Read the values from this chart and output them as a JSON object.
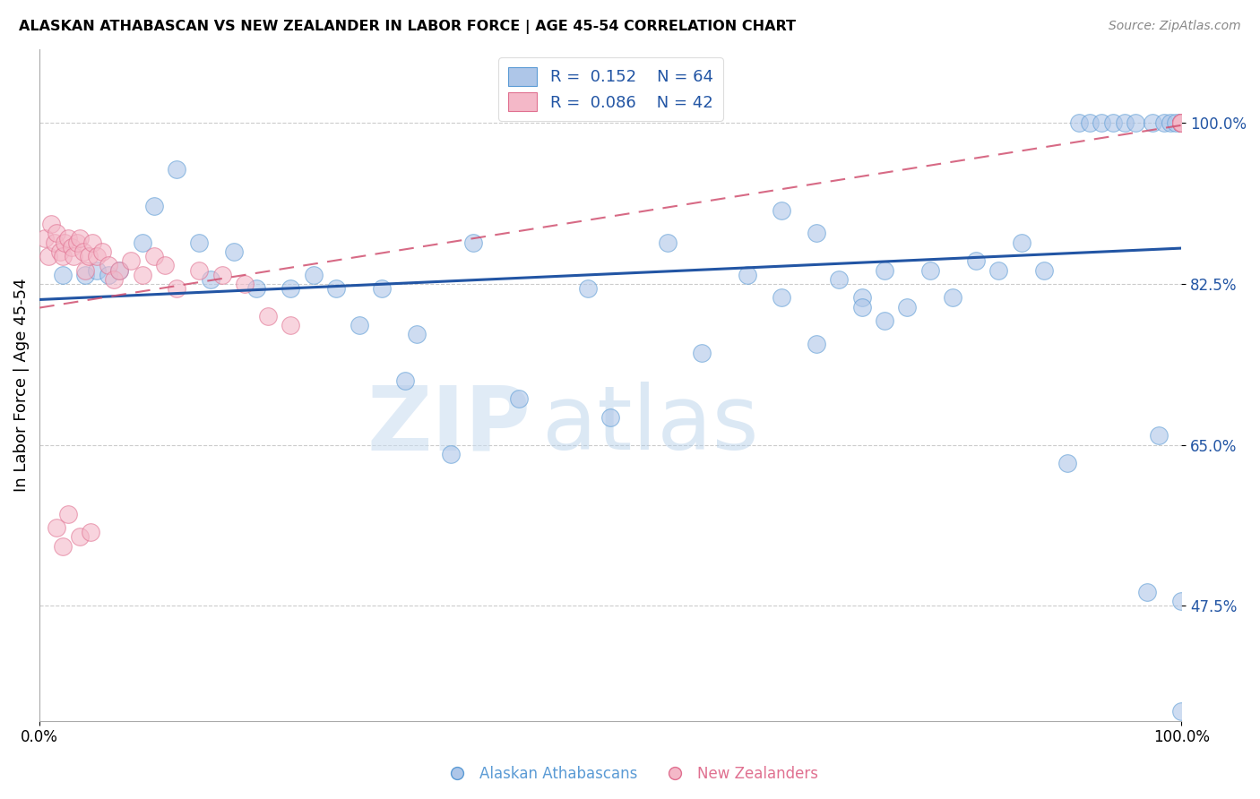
{
  "title": "ALASKAN ATHABASCAN VS NEW ZEALANDER IN LABOR FORCE | AGE 45-54 CORRELATION CHART",
  "source": "Source: ZipAtlas.com",
  "ylabel": "In Labor Force | Age 45-54",
  "ytick_labels": [
    "47.5%",
    "65.0%",
    "82.5%",
    "100.0%"
  ],
  "ytick_values": [
    0.475,
    0.65,
    0.825,
    1.0
  ],
  "xlim": [
    0.0,
    1.0
  ],
  "ylim": [
    0.35,
    1.08
  ],
  "legend_r1": "R =  0.152",
  "legend_n1": "N = 64",
  "legend_r2": "R =  0.086",
  "legend_n2": "N = 42",
  "blue_scatter_color": "#aec6e8",
  "pink_scatter_color": "#f4b8c8",
  "blue_edge_color": "#5b9bd5",
  "pink_edge_color": "#e07090",
  "blue_line_color": "#2255a4",
  "pink_line_color": "#d05070",
  "legend_text_color": "#2255a4",
  "blue_scatter_x": [
    0.02,
    0.04,
    0.05,
    0.06,
    0.07,
    0.09,
    0.1,
    0.12,
    0.14,
    0.15,
    0.17,
    0.19,
    0.22,
    0.24,
    0.26,
    0.28,
    0.3,
    0.33,
    0.38,
    0.42,
    0.48,
    0.5,
    0.55,
    0.58,
    0.62,
    0.65,
    0.68,
    0.7,
    0.72,
    0.74,
    0.76,
    0.78,
    0.8,
    0.82,
    0.84,
    0.86,
    0.88,
    0.9,
    0.91,
    0.92,
    0.93,
    0.94,
    0.95,
    0.96,
    0.97,
    0.975,
    0.98,
    0.985,
    0.99,
    0.995,
    1.0,
    1.0,
    1.0,
    1.0,
    1.0,
    1.0,
    1.0,
    1.0,
    0.65,
    0.68,
    0.72,
    0.74,
    0.32,
    0.36
  ],
  "blue_scatter_y": [
    0.835,
    0.835,
    0.84,
    0.835,
    0.84,
    0.87,
    0.91,
    0.95,
    0.87,
    0.83,
    0.86,
    0.82,
    0.82,
    0.835,
    0.82,
    0.78,
    0.82,
    0.77,
    0.87,
    0.7,
    0.82,
    0.68,
    0.87,
    0.75,
    0.835,
    0.81,
    0.76,
    0.83,
    0.81,
    0.84,
    0.8,
    0.84,
    0.81,
    0.85,
    0.84,
    0.87,
    0.84,
    0.63,
    1.0,
    1.0,
    1.0,
    1.0,
    1.0,
    1.0,
    0.49,
    1.0,
    0.66,
    1.0,
    1.0,
    1.0,
    1.0,
    1.0,
    1.0,
    1.0,
    0.48,
    0.36,
    1.0,
    1.0,
    0.905,
    0.88,
    0.8,
    0.785,
    0.72,
    0.64
  ],
  "pink_scatter_x": [
    0.005,
    0.008,
    0.01,
    0.013,
    0.015,
    0.018,
    0.02,
    0.022,
    0.025,
    0.028,
    0.03,
    0.033,
    0.035,
    0.038,
    0.04,
    0.043,
    0.046,
    0.05,
    0.055,
    0.06,
    0.065,
    0.07,
    0.08,
    0.09,
    0.1,
    0.11,
    0.12,
    0.14,
    0.16,
    0.18,
    0.2,
    0.22,
    0.015,
    0.02,
    0.025,
    0.035,
    0.045,
    1.0,
    1.0,
    1.0,
    1.0,
    1.0
  ],
  "pink_scatter_y": [
    0.875,
    0.855,
    0.89,
    0.87,
    0.88,
    0.86,
    0.855,
    0.87,
    0.875,
    0.865,
    0.855,
    0.87,
    0.875,
    0.86,
    0.84,
    0.855,
    0.87,
    0.855,
    0.86,
    0.845,
    0.83,
    0.84,
    0.85,
    0.835,
    0.855,
    0.845,
    0.82,
    0.84,
    0.835,
    0.825,
    0.79,
    0.78,
    0.56,
    0.54,
    0.575,
    0.55,
    0.555,
    1.0,
    1.0,
    1.0,
    1.0,
    1.0
  ]
}
